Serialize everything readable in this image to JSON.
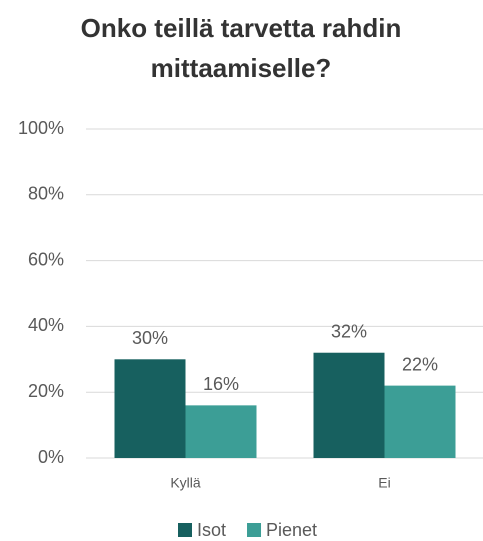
{
  "chart_data": {
    "type": "bar",
    "title": "Onko teillä tarvetta rahdin mittaamiselle?",
    "categories": [
      "Kyllä",
      "Ei"
    ],
    "series": [
      {
        "name": "Isot",
        "color": "#17605f",
        "values": [
          30,
          32
        ],
        "value_labels": [
          "30%",
          "32%"
        ]
      },
      {
        "name": "Pienet",
        "color": "#3c9e96",
        "values": [
          16,
          22
        ],
        "value_labels": [
          "16%",
          "22%"
        ]
      }
    ],
    "ylim": [
      0,
      100
    ],
    "yticks": [
      {
        "value": 0,
        "label": "0%"
      },
      {
        "value": 20,
        "label": "20%"
      },
      {
        "value": 40,
        "label": "40%"
      },
      {
        "value": 60,
        "label": "60%"
      },
      {
        "value": 80,
        "label": "80%"
      },
      {
        "value": 100,
        "label": "100%"
      }
    ],
    "grid": true,
    "legend": "bottom"
  }
}
